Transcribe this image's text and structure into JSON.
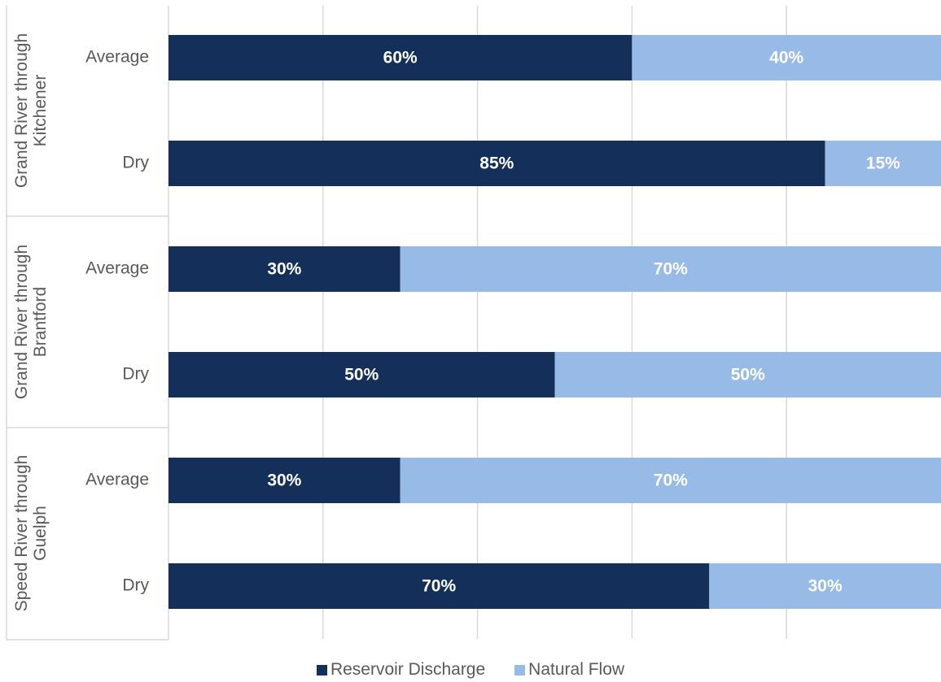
{
  "chart_data": {
    "type": "stacked-bar-horizontal",
    "groups": [
      "Grand River through Kitchener",
      "Grand River through Brantford",
      "Speed River through Guelph"
    ],
    "categories": [
      "Average",
      "Dry",
      "Average",
      "Dry",
      "Average",
      "Dry"
    ],
    "series": [
      {
        "name": "Reservoir Discharge",
        "color": "#14305a",
        "values": [
          60,
          85,
          30,
          50,
          30,
          70
        ],
        "value_labels": [
          "60%",
          "85%",
          "30%",
          "50%",
          "30%",
          "70%"
        ]
      },
      {
        "name": "Natural Flow",
        "color": "#97bbe6",
        "values": [
          40,
          15,
          70,
          50,
          70,
          30
        ],
        "value_labels": [
          "40%",
          "15%",
          "70%",
          "50%",
          "70%",
          "30%"
        ]
      }
    ],
    "xlim": [
      0,
      100
    ],
    "xgrid": [
      20,
      40,
      60,
      80
    ],
    "legend": "bottom"
  }
}
